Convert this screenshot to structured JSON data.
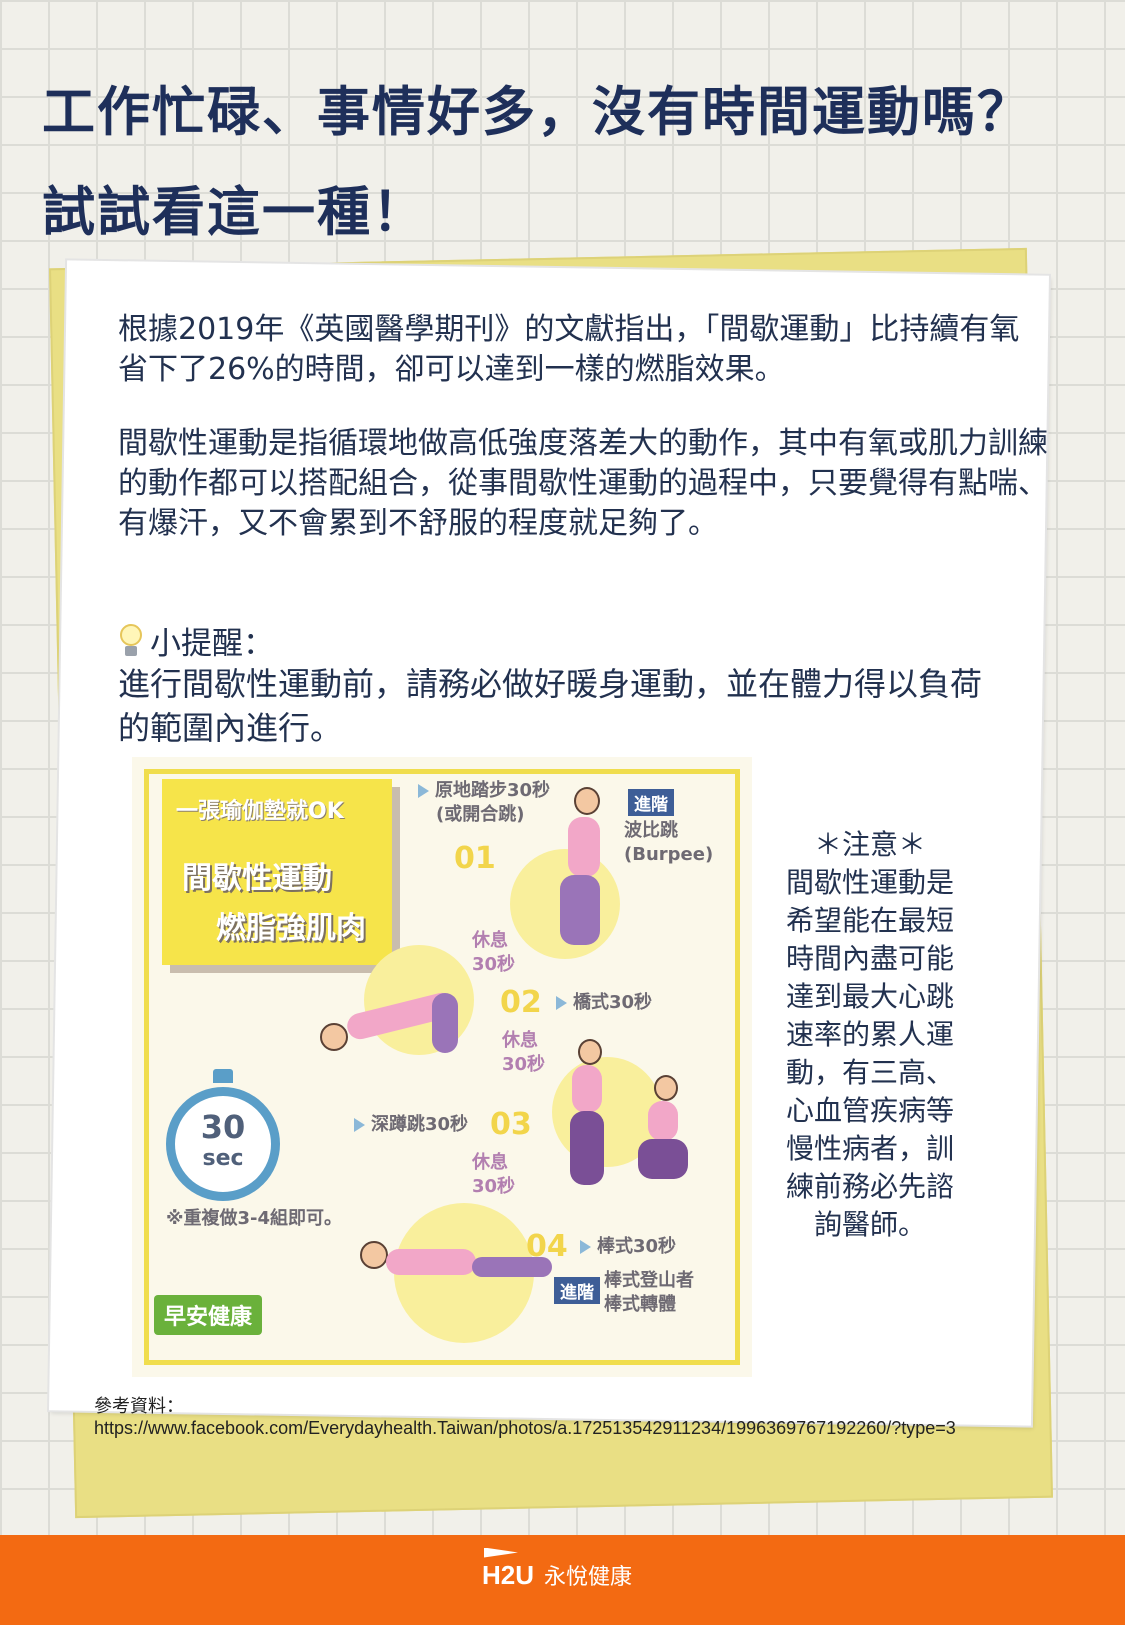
{
  "headline": {
    "line1": "工作忙碌、事情好多，沒有時間運動嗎？",
    "line2": "試試看這一種！"
  },
  "content": {
    "paragraph1": "根據2019年《英國醫學期刊》的文獻指出，「間歇運動」比持續有氧省下了26%的時間，卻可以達到一樣的燃脂效果。",
    "paragraph2": "間歇性運動是指循環地做高低強度落差大的動作，其中有氧或肌力訓練的動作都可以搭配組合，從事間歇性運動的過程中，只要覺得有點喘、有爆汗，又不會累到不舒服的程度就足夠了。",
    "tip_icon": "lightbulb-icon",
    "tip_title": "小提醒：",
    "tip_text": "進行間歇性運動前，請務必做好暖身運動，並在體力得以負荷的範圍內進行。"
  },
  "infographic": {
    "banner_top": "一張瑜伽墊就OK",
    "banner_mid": "間歇性運動",
    "banner_bottom": "燃脂強肌肉",
    "step1_num": "01",
    "step1_label": "原地踏步30秒",
    "step1_alt": "(或開合跳)",
    "advanced_tag": "進階",
    "step1_adv": "波比跳",
    "step1_adv2": "(Burpee)",
    "rest_label": "休息",
    "rest_time": "30秒",
    "step2_num": "02",
    "step2_label": "橋式30秒",
    "step3_num": "03",
    "step3_label": "深蹲跳30秒",
    "step4_num": "04",
    "step4_label": "棒式30秒",
    "step4_adv1": "棒式登山者",
    "step4_adv2": "棒式轉體",
    "timer_value": "30",
    "timer_unit": "sec",
    "repeat_note": "※重複做3-4組即可。",
    "logo": "早安健康",
    "colors": {
      "yellow": "#f6e44a",
      "blue": "#5a9ec8",
      "pink": "#f2a7c8",
      "purple": "#9a74b8"
    }
  },
  "note": {
    "title": "＊注意＊",
    "lines": [
      "間歇性運動是",
      "希望能在最短",
      "時間內盡可能",
      "達到最大心跳",
      "速率的累人運",
      "動，有三高、",
      "心血管疾病等",
      "慢性病者，訓",
      "練前務必先諮",
      "詢醫師。"
    ]
  },
  "reference": {
    "label": "參考資料：",
    "url": "https://www.facebook.com/Everydayhealth.Taiwan/photos/a.172513542911234/1996369767192260/?type=3"
  },
  "footer": {
    "brand_mark": "H2U",
    "brand_name": "永悅健康",
    "background": "#f36a12"
  }
}
